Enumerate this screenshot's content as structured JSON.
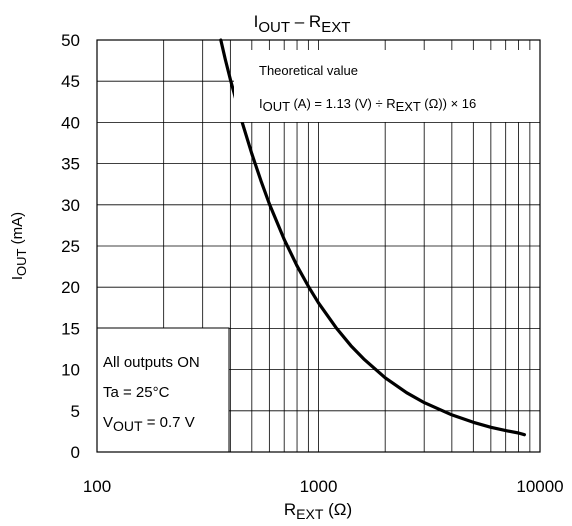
{
  "chart_data": {
    "type": "line",
    "title": {
      "main": "I",
      "main_sub": "OUT",
      "sep": " – ",
      "var": "R",
      "var_sub": "EXT"
    },
    "xlabel": {
      "main": "R",
      "sub": "EXT",
      "unit": " (Ω)"
    },
    "ylabel": {
      "main": "I",
      "sub": "OUT",
      "unit": " (mA)"
    },
    "x_scale": "log",
    "xlim": [
      100,
      10000
    ],
    "ylim": [
      0,
      50
    ],
    "x_ticks": [
      {
        "value": 100,
        "label": "100"
      },
      {
        "value": 1000,
        "label": "1000"
      },
      {
        "value": 10000,
        "label": "10000"
      }
    ],
    "y_ticks": [
      {
        "value": 0,
        "label": "0"
      },
      {
        "value": 5,
        "label": "5"
      },
      {
        "value": 10,
        "label": "10"
      },
      {
        "value": 15,
        "label": "15"
      },
      {
        "value": 20,
        "label": "20"
      },
      {
        "value": 25,
        "label": "25"
      },
      {
        "value": 30,
        "label": "30"
      },
      {
        "value": 35,
        "label": "35"
      },
      {
        "value": 40,
        "label": "40"
      },
      {
        "value": 45,
        "label": "45"
      },
      {
        "value": 50,
        "label": "50"
      }
    ],
    "grid": true,
    "series": [
      {
        "color": "#000000",
        "x": [
          362,
          380,
          400,
          450,
          500,
          550,
          600,
          700,
          800,
          900,
          1000,
          1200,
          1400,
          1600,
          2000,
          2500,
          3000,
          4000,
          5000,
          6000,
          7000,
          8000,
          8500
        ],
        "y": [
          50,
          47.6,
          45.2,
          40.2,
          36.2,
          32.9,
          30.1,
          25.8,
          22.6,
          20.1,
          18.1,
          15.1,
          12.9,
          11.3,
          9.0,
          7.2,
          6.0,
          4.5,
          3.6,
          3.0,
          2.6,
          2.3,
          2.1
        ]
      }
    ],
    "annotations": {
      "theory": {
        "title": "Theoretical value",
        "formula_prefix": "I",
        "formula_prefix_sub": "OUT",
        "formula_mid": " (A) = 1.13 (V) ÷ R",
        "formula_mid_sub": "EXT",
        "formula_suffix": " (Ω)) × 16"
      },
      "conditions": {
        "line1": "All outputs ON",
        "line2": "Ta = 25°C",
        "line3_main": "V",
        "line3_sub": "OUT",
        "line3_rest": " = 0.7 V"
      }
    }
  }
}
